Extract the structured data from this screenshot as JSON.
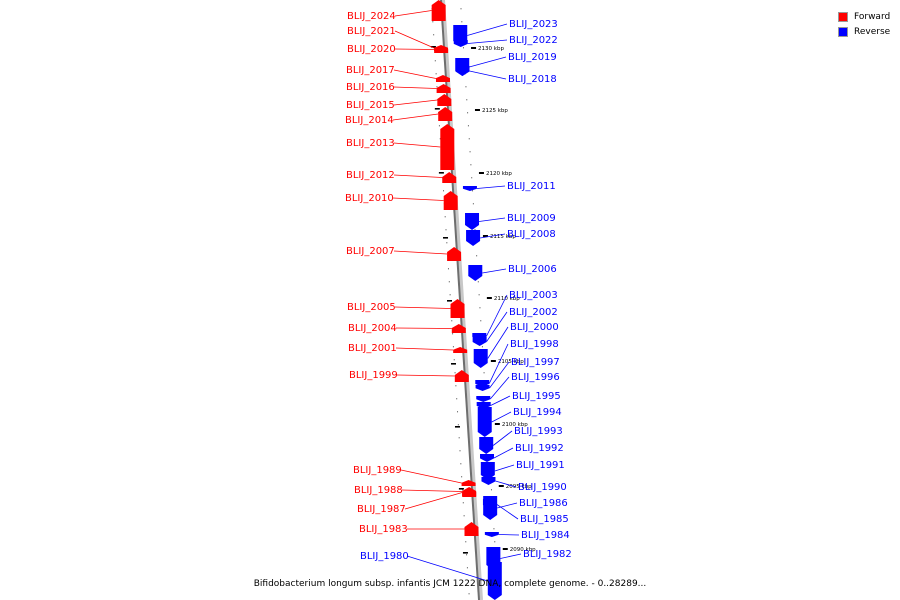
{
  "legend": {
    "forward_label": "Forward",
    "reverse_label": "Reverse",
    "forward_color": "#ff0000",
    "reverse_color": "#0000ff"
  },
  "caption": "Bifidobacterium longum subsp. infantis JCM 1222 DNA, complete genome. - 0..28289...",
  "kbp_markers": [
    {
      "kbp": 2130,
      "label": "2130 kbp"
    },
    {
      "kbp": 2125,
      "label": "2125 kbp"
    },
    {
      "kbp": 2120,
      "label": "2120 kbp"
    },
    {
      "kbp": 2115,
      "label": "2115 kbp"
    },
    {
      "kbp": 2110,
      "label": "2110 kbp"
    },
    {
      "kbp": 2105,
      "label": "2105 kbp"
    },
    {
      "kbp": 2100,
      "label": "2100 kbp"
    },
    {
      "kbp": 2095,
      "label": "2095 kbp"
    },
    {
      "kbp": 2090,
      "label": "2090 kbp"
    }
  ],
  "forward_genes": [
    {
      "name": "BLIJ_2024"
    },
    {
      "name": "BLIJ_2021"
    },
    {
      "name": "BLIJ_2020"
    },
    {
      "name": "BLIJ_2017"
    },
    {
      "name": "BLIJ_2016"
    },
    {
      "name": "BLIJ_2015"
    },
    {
      "name": "BLIJ_2014"
    },
    {
      "name": "BLIJ_2013"
    },
    {
      "name": "BLIJ_2012"
    },
    {
      "name": "BLIJ_2010"
    },
    {
      "name": "BLIJ_2007"
    },
    {
      "name": "BLIJ_2005"
    },
    {
      "name": "BLIJ_2004"
    },
    {
      "name": "BLIJ_2001"
    },
    {
      "name": "BLIJ_1999"
    },
    {
      "name": "BLIJ_1989"
    },
    {
      "name": "BLIJ_1988"
    },
    {
      "name": "BLIJ_1987"
    },
    {
      "name": "BLIJ_1983"
    }
  ],
  "reverse_genes": [
    {
      "name": "BLIJ_2023"
    },
    {
      "name": "BLIJ_2022"
    },
    {
      "name": "BLIJ_2019"
    },
    {
      "name": "BLIJ_2018"
    },
    {
      "name": "BLIJ_2011"
    },
    {
      "name": "BLIJ_2009"
    },
    {
      "name": "BLIJ_2008"
    },
    {
      "name": "BLIJ_2006"
    },
    {
      "name": "BLIJ_2003"
    },
    {
      "name": "BLIJ_2002"
    },
    {
      "name": "BLIJ_2000"
    },
    {
      "name": "BLIJ_1998"
    },
    {
      "name": "BLIJ_1997"
    },
    {
      "name": "BLIJ_1996"
    },
    {
      "name": "BLIJ_1995"
    },
    {
      "name": "BLIJ_1994"
    },
    {
      "name": "BLIJ_1993"
    },
    {
      "name": "BLIJ_1992"
    },
    {
      "name": "BLIJ_1991"
    },
    {
      "name": "BLIJ_1990"
    },
    {
      "name": "BLIJ_1986"
    },
    {
      "name": "BLIJ_1985"
    },
    {
      "name": "BLIJ_1984"
    },
    {
      "name": "BLIJ_1982"
    },
    {
      "name": "BLIJ_1980"
    }
  ]
}
